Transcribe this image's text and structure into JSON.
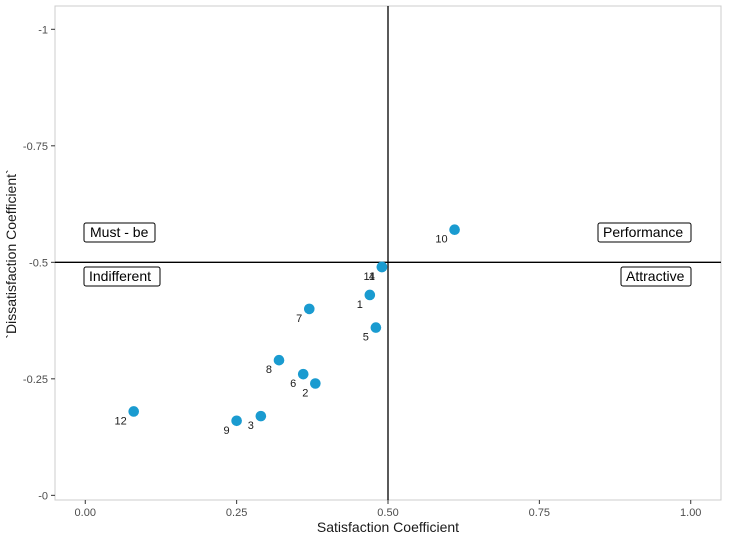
{
  "chart_data": {
    "type": "scatter",
    "xlabel": "Satisfaction Coefficient",
    "ylabel": "`Dissatisfaction Coefficient`",
    "xlim": [
      -0.05,
      1.05
    ],
    "ylim": [
      0.01,
      -1.05
    ],
    "x_ticks": [
      {
        "value": 0,
        "label": "0.00"
      },
      {
        "value": 0.25,
        "label": "0.25"
      },
      {
        "value": 0.5,
        "label": "0.50"
      },
      {
        "value": 0.75,
        "label": "0.75"
      },
      {
        "value": 1,
        "label": "1.00"
      }
    ],
    "y_ticks": [
      {
        "value": -1,
        "label": "-1"
      },
      {
        "value": -0.75,
        "label": "-0.75"
      },
      {
        "value": -0.5,
        "label": "-0.5"
      },
      {
        "value": -0.25,
        "label": "-0.25"
      },
      {
        "value": 0,
        "label": "-0"
      }
    ],
    "reference_lines": {
      "x": 0.5,
      "y": -0.5
    },
    "grid": false,
    "point_color": "#1a9bd0",
    "points": [
      {
        "label": "1",
        "x": 0.47,
        "y": -0.43
      },
      {
        "label": "2",
        "x": 0.38,
        "y": -0.24
      },
      {
        "label": "3",
        "x": 0.29,
        "y": -0.17
      },
      {
        "label": "4",
        "x": 0.49,
        "y": -0.49
      },
      {
        "label": "5",
        "x": 0.48,
        "y": -0.36
      },
      {
        "label": "6",
        "x": 0.36,
        "y": -0.26
      },
      {
        "label": "7",
        "x": 0.37,
        "y": -0.4
      },
      {
        "label": "8",
        "x": 0.32,
        "y": -0.29
      },
      {
        "label": "9",
        "x": 0.25,
        "y": -0.16
      },
      {
        "label": "10",
        "x": 0.61,
        "y": -0.57
      },
      {
        "label": "11",
        "x": 0.49,
        "y": -0.49
      },
      {
        "label": "12",
        "x": 0.08,
        "y": -0.18
      }
    ],
    "quadrant_labels": {
      "must_be": "Must - be",
      "indifferent": "Indifferent",
      "performance": "Performance",
      "attractive": "Attractive"
    }
  }
}
